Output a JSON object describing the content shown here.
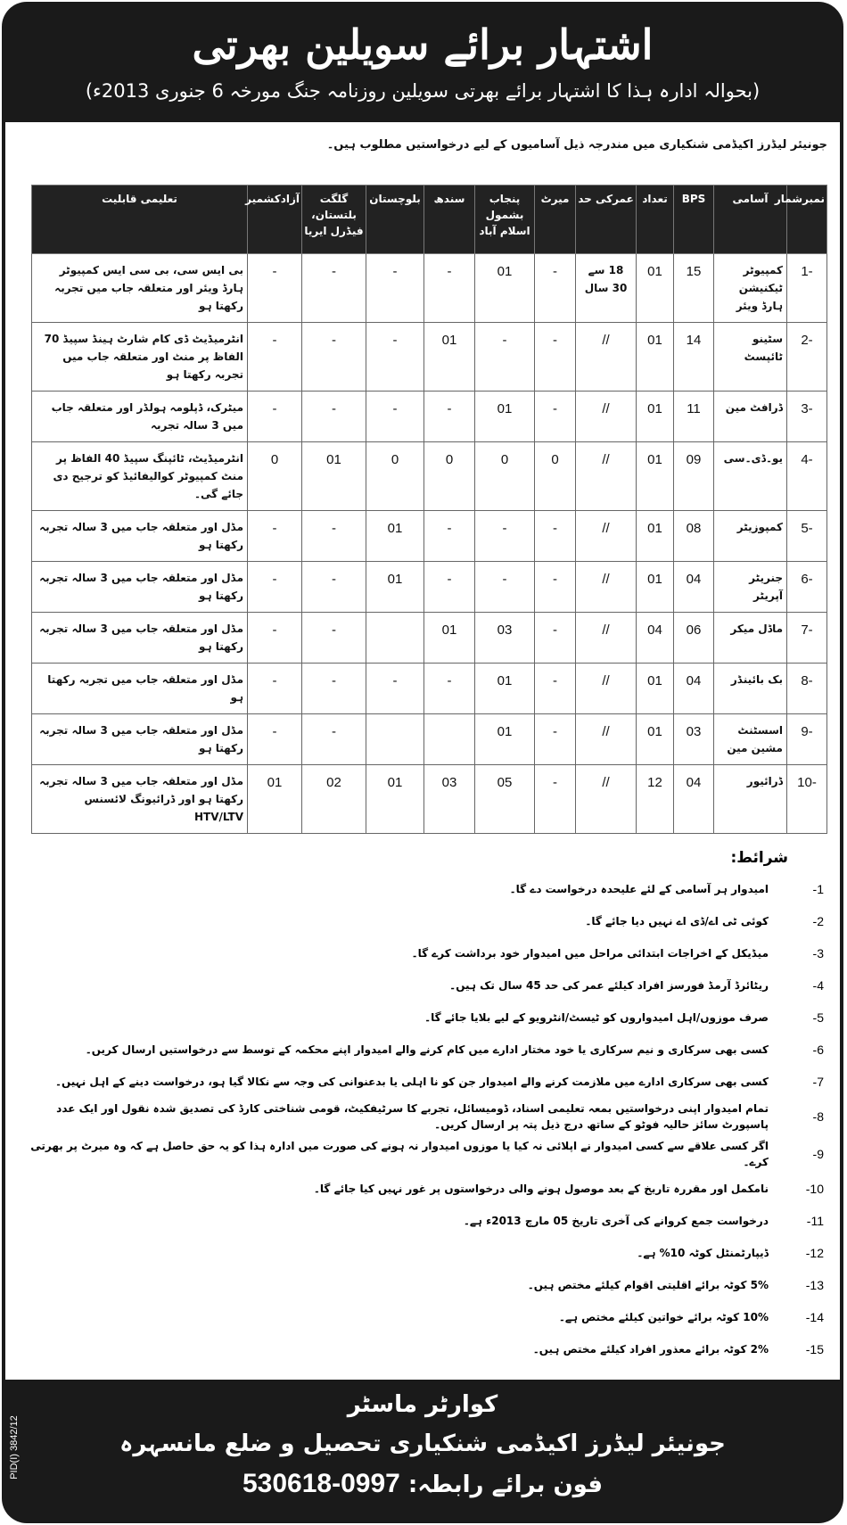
{
  "header": {
    "title": "اشتہار برائے سویلین بھرتی",
    "subtitle": "(بحوالہ ادارہ ہذا کا اشتہار برائے بھرتی سویلین روزنامہ جنگ مورخہ 6 جنوری 2013ء)"
  },
  "intro": "جونیئر لیڈرز اکیڈمی شنکیاری میں مندرجہ ذیل آسامیوں کے لیے درخواستیں مطلوب ہیں۔",
  "table": {
    "headers": [
      "نمبرشمار",
      "آسامی",
      "BPS",
      "تعداد",
      "عمرکی حد",
      "میرٹ",
      "پنجاب بشمول اسلام آباد",
      "سندھ",
      "بلوچستان",
      "گلگت بلتستان، فیڈرل ایریا",
      "آزادکشمیر",
      "تعلیمی قابلیت"
    ],
    "rows": [
      [
        "1-",
        "کمپیوٹر ٹیکنیشن ہارڈ ویئر",
        "15",
        "01",
        "18 سے 30 سال",
        "-",
        "01",
        "-",
        "-",
        "-",
        "-",
        "بی ایس سی، بی سی ایس کمپیوٹر ہارڈ ویئر اور متعلقہ جاب میں تجربہ رکھتا ہو"
      ],
      [
        "2-",
        "سٹینو ٹائپسٹ",
        "14",
        "01",
        "//",
        "-",
        "-",
        "01",
        "-",
        "-",
        "-",
        "انٹرمیڈیٹ ڈی کام شارٹ ہینڈ سپیڈ 70 الفاظ پر منٹ اور متعلقہ جاب میں تجربہ رکھتا ہو"
      ],
      [
        "3-",
        "ڈرافٹ مین",
        "11",
        "01",
        "//",
        "-",
        "01",
        "-",
        "-",
        "-",
        "-",
        "میٹرک، ڈپلومہ ہولڈر اور متعلقہ جاب میں 3 سالہ تجربہ"
      ],
      [
        "4-",
        "یو۔ڈی۔سی",
        "09",
        "01",
        "//",
        "0",
        "0",
        "0",
        "0",
        "01",
        "0",
        "انٹرمیڈیٹ، ٹائپنگ سپیڈ 40 الفاظ پر منٹ کمپیوٹر کوالیفائیڈ کو ترجیح دی جائے گی۔"
      ],
      [
        "5-",
        "کمپوزیٹر",
        "08",
        "01",
        "//",
        "-",
        "-",
        "-",
        "01",
        "-",
        "-",
        "مڈل اور متعلقہ جاب میں 3 سالہ تجربہ رکھتا ہو"
      ],
      [
        "6-",
        "جنریٹر آپریٹر",
        "04",
        "01",
        "//",
        "-",
        "-",
        "-",
        "01",
        "-",
        "-",
        "مڈل اور متعلقہ جاب میں 3 سالہ تجربہ رکھتا ہو"
      ],
      [
        "7-",
        "ماڈل میکر",
        "06",
        "04",
        "//",
        "-",
        "03",
        "01",
        "",
        "-",
        "-",
        "مڈل اور متعلقہ جاب میں 3 سالہ تجربہ رکھتا ہو"
      ],
      [
        "8-",
        "بک بائینڈر",
        "04",
        "01",
        "//",
        "-",
        "01",
        "-",
        "-",
        "-",
        "-",
        "مڈل اور متعلقہ جاب میں تجربہ رکھتا ہو"
      ],
      [
        "9-",
        "اسسٹنٹ مشین مین",
        "03",
        "01",
        "//",
        "-",
        "01",
        "",
        "",
        "-",
        "-",
        "مڈل اور متعلقہ جاب میں 3 سالہ تجربہ رکھتا ہو"
      ],
      [
        "10-",
        "ڈرائیور",
        "04",
        "12",
        "//",
        "-",
        "05",
        "03",
        "01",
        "02",
        "01",
        "مڈل اور متعلقہ جاب میں 3 سالہ تجربہ رکھتا ہو اور ڈرائیونگ لائسنس HTV/LTV"
      ]
    ]
  },
  "conditions": {
    "heading": "شرائط:",
    "items": [
      {
        "n": "-1",
        "t": "امیدوار ہر آسامی کے لئے علیحدہ درخواست دے گا۔"
      },
      {
        "n": "-2",
        "t": "کوئی ٹی اے/ڈی اے نہیں دیا جائے گا۔"
      },
      {
        "n": "-3",
        "t": "میڈیکل کے اخراجات ابتدائی مراحل میں امیدوار خود برداشت کرے گا۔"
      },
      {
        "n": "-4",
        "t": "ریٹائرڈ آرمڈ فورسز افراد کیلئے عمر کی حد 45 سال تک ہیں۔"
      },
      {
        "n": "-5",
        "t": "صرف موزوں/اہل امیدواروں کو ٹیسٹ/انٹرویو کے لیے بلایا جائے گا۔"
      },
      {
        "n": "-6",
        "t": "کسی بھی سرکاری و نیم سرکاری یا خود مختار ادارے میں کام کرنے والے امیدوار اپنے محکمہ کے توسط سے درخواستیں ارسال کریں۔"
      },
      {
        "n": "-7",
        "t": "کسی بھی سرکاری ادارے میں ملازمت کرنے والے امیدوار جن کو نا اہلی یا بدعنوانی کی وجہ سے نکالا گیا ہو، درخواست دینے کے اہل نہیں۔"
      },
      {
        "n": "-8",
        "t": "تمام امیدوار اپنی درخواستیں بمعہ تعلیمی اسناد، ڈومیسائل، تجربے کا سرٹیفکیٹ، قومی شناختی کارڈ کی تصدیق شدہ نقول اور ایک عدد پاسپورٹ سائز حالیہ فوٹو کے ساتھ درج ذیل پتہ پر ارسال کریں۔"
      },
      {
        "n": "-9",
        "t": "اگر کسی علاقے سے کسی امیدوار نے اپلائی نہ کیا یا موزوں امیدوار نہ ہونے کی صورت میں ادارہ ہذا کو یہ حق حاصل ہے کہ وہ میرٹ پر بھرتی کرے۔"
      },
      {
        "n": "-10",
        "t": "نامکمل اور مقررہ تاریخ کے بعد موصول ہونے والی درخواستوں پر غور نہیں کیا جائے گا۔"
      },
      {
        "n": "-11",
        "t": "درخواست جمع کروانے کی آخری تاریخ 05 مارچ 2013ء ہے۔"
      },
      {
        "n": "-12",
        "t": "ڈیپارٹمنٹل کوٹہ 10% ہے۔"
      },
      {
        "n": "-13",
        "t": "5% کوٹہ برائے اقلیتی اقوام کیلئے مختص ہیں۔"
      },
      {
        "n": "-14",
        "t": "10% کوٹہ برائے خواتین کیلئے مختص ہے۔"
      },
      {
        "n": "-15",
        "t": "2% کوٹہ برائے معذور افراد کیلئے مختص ہیں۔"
      }
    ]
  },
  "footer": {
    "line1": "کوارٹر ماسٹر",
    "line2": "جونیئر لیڈرز اکیڈمی شنکیاری تحصیل و ضلع مانسہرہ",
    "phone_label": "فون برائے رابطہ:",
    "phone": "0997-530618",
    "pid": "PID(I) 3842/12"
  }
}
